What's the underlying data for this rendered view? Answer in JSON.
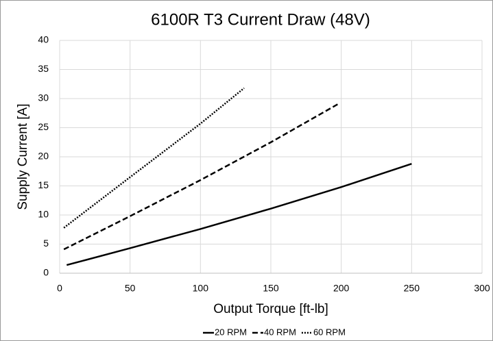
{
  "chart_data": {
    "type": "line",
    "title": "6100R T3 Current Draw (48V)",
    "x_label": "Output Torque [ft-lb]",
    "y_label": "Supply Current [A]",
    "xlim": [
      0,
      300
    ],
    "xticks": [
      0,
      50,
      100,
      150,
      200,
      250,
      300
    ],
    "ylim": [
      0,
      40
    ],
    "yticks": [
      0,
      5,
      10,
      15,
      20,
      25,
      30,
      35,
      40
    ],
    "grid": true,
    "legend": "bottom",
    "series": [
      {
        "name": "20 RPM",
        "color": "#000000",
        "style": "solid",
        "x": [
          5,
          50,
          100,
          150,
          200,
          250
        ],
        "values": [
          1.4,
          4.3,
          7.6,
          11.1,
          14.8,
          18.8
        ]
      },
      {
        "name": "40 RPM",
        "color": "#000000",
        "style": "dashed",
        "x": [
          3,
          50,
          100,
          150,
          198
        ],
        "values": [
          4.1,
          9.8,
          16,
          22.5,
          29.1
        ]
      },
      {
        "name": "60 RPM",
        "color": "#000000",
        "style": "dotted",
        "x": [
          3,
          50,
          100,
          131
        ],
        "values": [
          7.8,
          16.5,
          25.7,
          31.8
        ]
      }
    ]
  }
}
